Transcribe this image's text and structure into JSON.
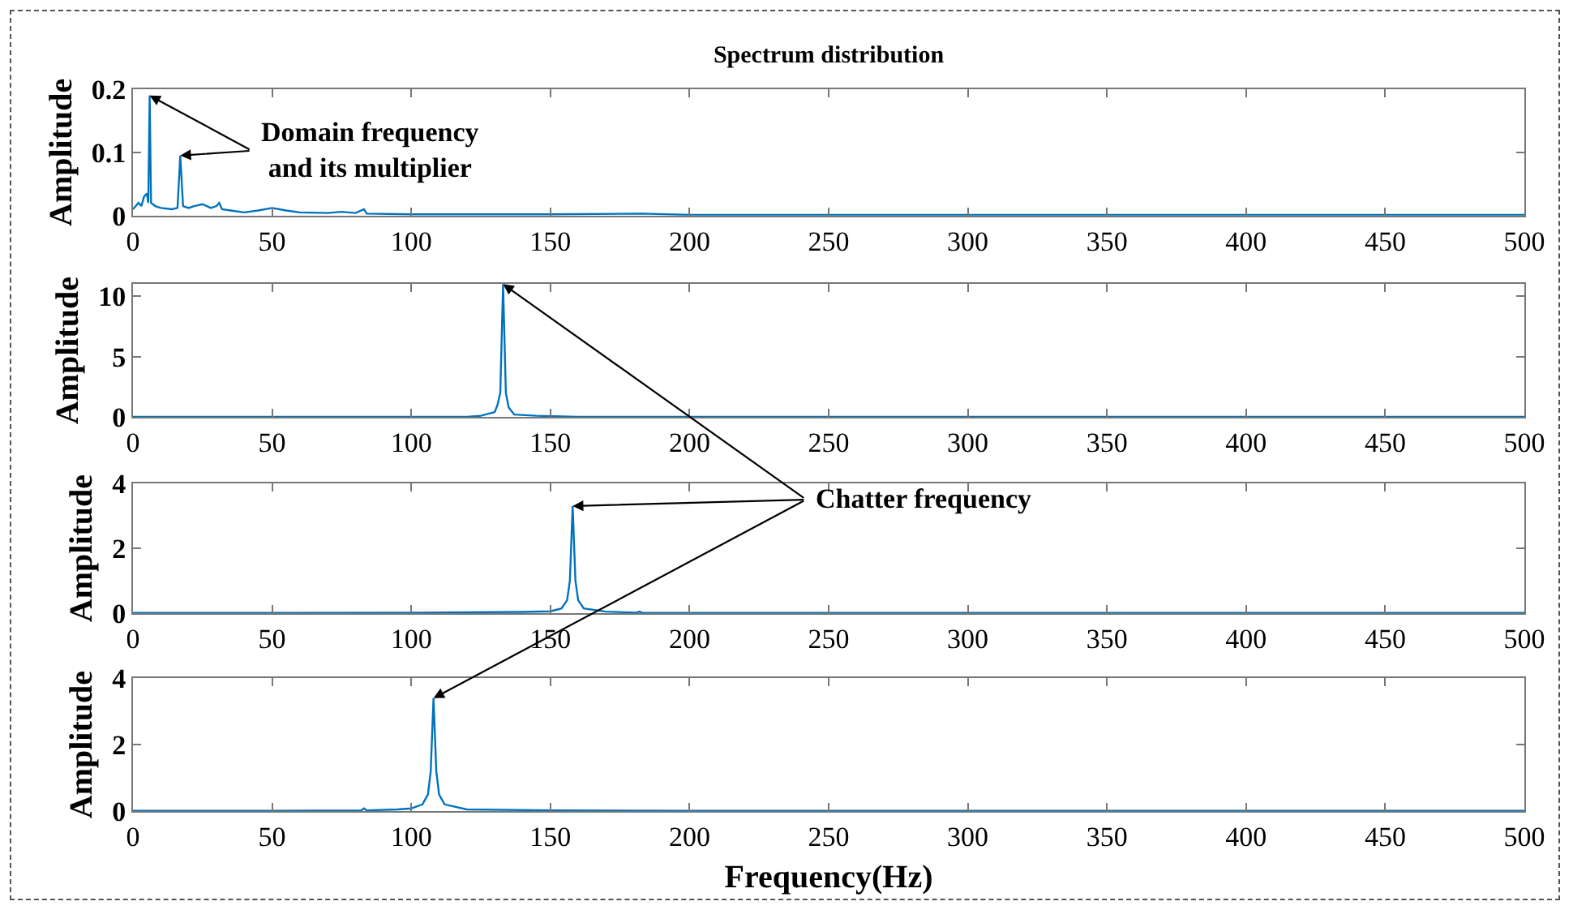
{
  "chart_data": [
    {
      "type": "line",
      "title": "Spectrum distribution",
      "ylabel": "Amplitude",
      "xlim": [
        0,
        500
      ],
      "xticks": [
        0,
        50,
        100,
        150,
        200,
        250,
        300,
        350,
        400,
        450,
        500
      ],
      "ylim": [
        0,
        0.2
      ],
      "yticks": [
        0,
        0.1,
        0.2
      ],
      "grid": false,
      "marker": "none",
      "annotations": [
        {
          "text": "Domain frequency\nand its multiplier",
          "x": 6,
          "y": 0.19
        }
      ],
      "series": [
        {
          "color": "#0072bd",
          "x": [
            0,
            1,
            2,
            3,
            4,
            5,
            5.5,
            6,
            6.5,
            8,
            10,
            14,
            16,
            17,
            18,
            20,
            22,
            25,
            28,
            30,
            31,
            32,
            35,
            40,
            45,
            50,
            55,
            60,
            70,
            75,
            80,
            83,
            84,
            100,
            150,
            183,
            200,
            300,
            400,
            500
          ],
          "values": [
            0.01,
            0.015,
            0.02,
            0.015,
            0.03,
            0.035,
            0.02,
            0.19,
            0.02,
            0.015,
            0.012,
            0.01,
            0.012,
            0.095,
            0.015,
            0.012,
            0.015,
            0.018,
            0.012,
            0.015,
            0.02,
            0.01,
            0.008,
            0.005,
            0.008,
            0.012,
            0.008,
            0.005,
            0.004,
            0.006,
            0.004,
            0.01,
            0.003,
            0.002,
            0.002,
            0.003,
            0.001,
            0.001,
            0.001,
            0.001
          ]
        }
      ]
    },
    {
      "type": "line",
      "ylabel": "Amplitude",
      "xlim": [
        0,
        500
      ],
      "xticks": [
        0,
        50,
        100,
        150,
        200,
        250,
        300,
        350,
        400,
        450,
        500
      ],
      "ylim": [
        0,
        11
      ],
      "yticks": [
        0,
        5,
        10
      ],
      "grid": false,
      "marker": "none",
      "series": [
        {
          "color": "#0072bd",
          "x": [
            0,
            50,
            100,
            120,
            125,
            130,
            131,
            132,
            133,
            134,
            135,
            137,
            145,
            160,
            200,
            300,
            400,
            500
          ],
          "values": [
            0,
            0,
            0,
            0,
            0.1,
            0.4,
            1,
            2,
            11,
            2,
            0.8,
            0.2,
            0.1,
            0,
            0,
            0,
            0,
            0
          ]
        }
      ]
    },
    {
      "type": "line",
      "ylabel": "Amplitude",
      "xlim": [
        0,
        500
      ],
      "xticks": [
        0,
        50,
        100,
        150,
        200,
        250,
        300,
        350,
        400,
        450,
        500
      ],
      "ylim": [
        0,
        4
      ],
      "yticks": [
        0,
        2,
        4
      ],
      "grid": false,
      "marker": "none",
      "annotations": [
        {
          "text": "Chatter frequency",
          "x": 158,
          "y": 3.3
        }
      ],
      "series": [
        {
          "color": "#0072bd",
          "x": [
            0,
            50,
            100,
            140,
            150,
            154,
            156,
            157,
            158,
            159,
            160,
            162,
            170,
            181,
            182,
            183,
            200,
            300,
            400,
            500
          ],
          "values": [
            0.01,
            0.01,
            0.02,
            0.04,
            0.06,
            0.15,
            0.4,
            1,
            3.3,
            1,
            0.4,
            0.15,
            0.05,
            0.02,
            0.05,
            0.02,
            0.01,
            0.01,
            0.01,
            0.01
          ]
        }
      ]
    },
    {
      "type": "line",
      "ylabel": "Amplitude",
      "xlabel": "Frequency(Hz)",
      "xlim": [
        0,
        500
      ],
      "xticks": [
        0,
        50,
        100,
        150,
        200,
        250,
        300,
        350,
        400,
        450,
        500
      ],
      "ylim": [
        0,
        4
      ],
      "yticks": [
        0,
        2,
        4
      ],
      "grid": false,
      "marker": "none",
      "series": [
        {
          "color": "#0072bd",
          "x": [
            0,
            50,
            82,
            83,
            84,
            95,
            100,
            104,
            106,
            107,
            108,
            109,
            110,
            112,
            120,
            150,
            200,
            300,
            400,
            500
          ],
          "values": [
            0.01,
            0.01,
            0.02,
            0.08,
            0.02,
            0.05,
            0.08,
            0.2,
            0.5,
            1.2,
            3.4,
            1.2,
            0.5,
            0.2,
            0.05,
            0.02,
            0.01,
            0.01,
            0.01,
            0.01
          ]
        }
      ]
    }
  ]
}
